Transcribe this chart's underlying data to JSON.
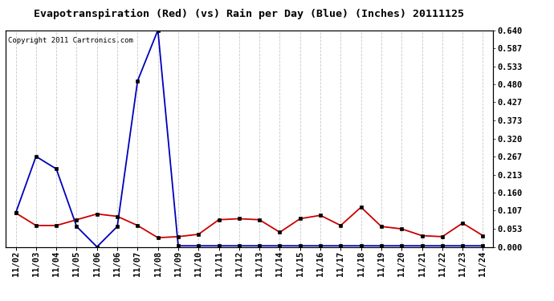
{
  "title": "Evapotranspiration (Red) (vs) Rain per Day (Blue) (Inches) 20111125",
  "copyright": "Copyright 2011 Cartronics.com",
  "x_labels": [
    "11/02",
    "11/03",
    "11/04",
    "11/05",
    "11/06",
    "11/06",
    "11/07",
    "11/08",
    "11/09",
    "11/10",
    "11/11",
    "11/12",
    "11/13",
    "11/14",
    "11/15",
    "11/16",
    "11/17",
    "11/18",
    "11/19",
    "11/20",
    "11/21",
    "11/22",
    "11/23",
    "11/24"
  ],
  "blue_rain": [
    0.1,
    0.267,
    0.23,
    0.06,
    0.0,
    0.06,
    0.49,
    0.64,
    0.003,
    0.003,
    0.003,
    0.003,
    0.003,
    0.003,
    0.003,
    0.003,
    0.003,
    0.003,
    0.003,
    0.003,
    0.003,
    0.003,
    0.003,
    0.003
  ],
  "red_et": [
    0.1,
    0.063,
    0.063,
    0.08,
    0.097,
    0.09,
    0.063,
    0.027,
    0.03,
    0.037,
    0.08,
    0.083,
    0.08,
    0.043,
    0.083,
    0.093,
    0.063,
    0.117,
    0.06,
    0.053,
    0.033,
    0.03,
    0.07,
    0.033
  ],
  "ylim": [
    0.0,
    0.64
  ],
  "yticks": [
    0.0,
    0.053,
    0.107,
    0.16,
    0.213,
    0.267,
    0.32,
    0.373,
    0.427,
    0.48,
    0.533,
    0.587,
    0.64
  ],
  "bg_color": "#ffffff",
  "plot_bg_color": "#ffffff",
  "grid_color": "#c8c8c8",
  "blue_color": "#0000bb",
  "red_color": "#cc0000",
  "title_fontsize": 9.5,
  "copyright_fontsize": 6.5,
  "tick_fontsize": 7.5,
  "ytick_fontsize": 7.5
}
